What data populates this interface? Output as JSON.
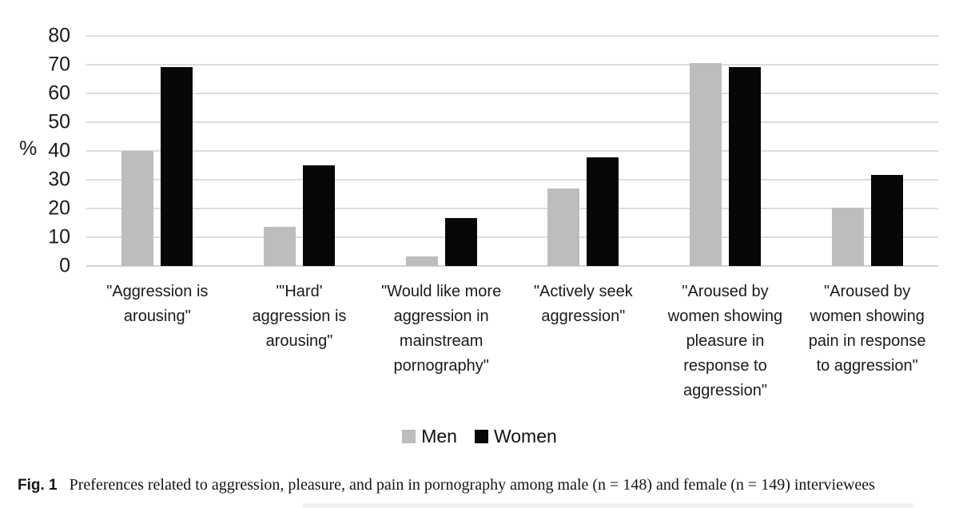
{
  "chart_data": {
    "type": "bar",
    "title": "",
    "xlabel": "",
    "ylabel": "%",
    "ylim": [
      0,
      80
    ],
    "yticks": [
      0,
      10,
      20,
      30,
      40,
      50,
      60,
      70,
      80
    ],
    "grid": true,
    "legend_position": "bottom",
    "categories": [
      "\"Aggression is arousing\"",
      "\"'Hard' aggression is arousing\"",
      "\"Would like more aggression in mainstream pornography\"",
      "\"Actively seek aggression\"",
      "\"Aroused by women showing pleasure in response to aggression\"",
      "\"Aroused by women showing pain in response to aggression\""
    ],
    "series": [
      {
        "name": "Men",
        "color": "#bcbdbc",
        "values": [
          40,
          13.5,
          3.4,
          27,
          70.5,
          20.3
        ]
      },
      {
        "name": "Women",
        "color": "#070707",
        "values": [
          69.3,
          35,
          16.8,
          37.9,
          69.3,
          31.8
        ]
      }
    ],
    "gridline_color": "#dcdcdc"
  },
  "caption": {
    "fig_label": "Fig. 1",
    "text": "Preferences related to aggression, pleasure, and pain in pornography among male (n = 148) and female (n = 149) interviewees"
  }
}
